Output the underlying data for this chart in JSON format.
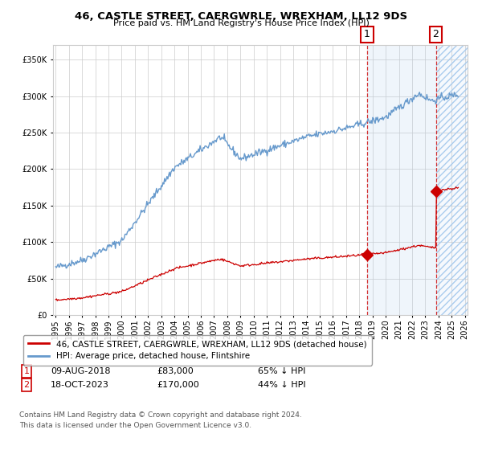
{
  "title": "46, CASTLE STREET, CAERGWRLE, WREXHAM, LL12 9DS",
  "subtitle": "Price paid vs. HM Land Registry's House Price Index (HPI)",
  "hpi_label": "HPI: Average price, detached house, Flintshire",
  "property_label": "46, CASTLE STREET, CAERGWRLE, WREXHAM, LL12 9DS (detached house)",
  "sale1_date": "09-AUG-2018",
  "sale1_price": 83000,
  "sale1_pct": "65% ↓ HPI",
  "sale2_date": "18-OCT-2023",
  "sale2_price": 170000,
  "sale2_pct": "44% ↓ HPI",
  "ylim": [
    0,
    370000
  ],
  "hpi_color": "#6699cc",
  "property_color": "#cc0000",
  "marker_color": "#cc0000",
  "grid_color": "#cccccc",
  "bg_color": "#ffffff",
  "legend_border_color": "#888888",
  "footnote": "Contains HM Land Registry data © Crown copyright and database right 2024.\nThis data is licensed under the Open Government Licence v3.0.",
  "sale1_year_float": 2018.6,
  "sale2_year_float": 2023.8,
  "xlim_left": 1994.8,
  "xlim_right": 2026.2
}
